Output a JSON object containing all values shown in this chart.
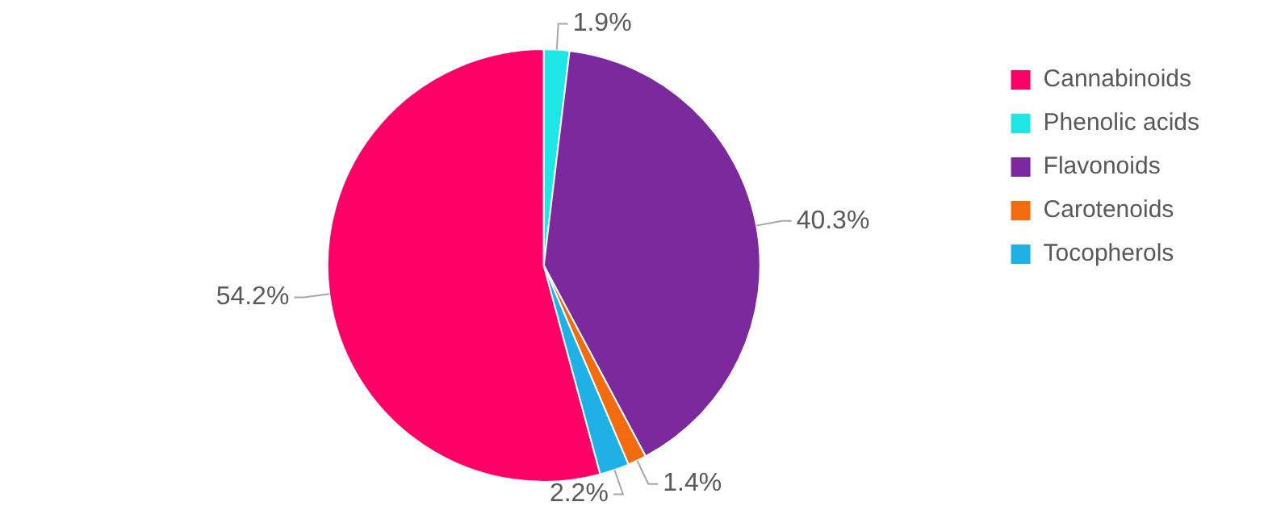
{
  "chart_data": {
    "type": "pie",
    "categories": [
      "Cannabinoids",
      "Phenolic acids",
      "Flavonoids",
      "Carotenoids",
      "Tocopherols"
    ],
    "values": [
      54.2,
      1.9,
      40.3,
      1.4,
      2.2
    ],
    "colors": [
      "#ff0066",
      "#1ee6e6",
      "#7b2a9e",
      "#f26b0f",
      "#1fb0e6"
    ],
    "value_labels": [
      "54.2%",
      "1.9%",
      "40.3%",
      "1.4%",
      "2.2%"
    ],
    "legend": "right"
  }
}
